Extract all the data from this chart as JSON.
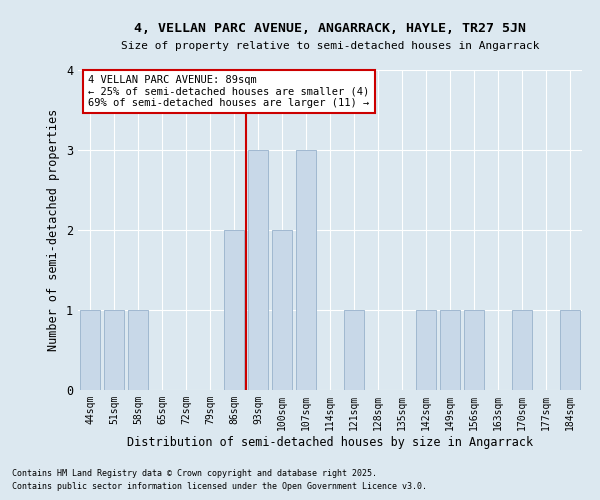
{
  "title": "4, VELLAN PARC AVENUE, ANGARRACK, HAYLE, TR27 5JN",
  "subtitle": "Size of property relative to semi-detached houses in Angarrack",
  "xlabel": "Distribution of semi-detached houses by size in Angarrack",
  "ylabel": "Number of semi-detached properties",
  "categories": [
    "44sqm",
    "51sqm",
    "58sqm",
    "65sqm",
    "72sqm",
    "79sqm",
    "86sqm",
    "93sqm",
    "100sqm",
    "107sqm",
    "114sqm",
    "121sqm",
    "128sqm",
    "135sqm",
    "142sqm",
    "149sqm",
    "156sqm",
    "163sqm",
    "170sqm",
    "177sqm",
    "184sqm"
  ],
  "values": [
    1,
    1,
    1,
    0,
    0,
    0,
    2,
    3,
    2,
    3,
    0,
    1,
    0,
    0,
    1,
    1,
    1,
    0,
    1,
    0,
    1
  ],
  "bar_color": "#c8d8e8",
  "bar_edge_color": "#a0b8d0",
  "highlight_index": 6,
  "highlight_line_color": "#cc0000",
  "annotation_title": "4 VELLAN PARC AVENUE: 89sqm",
  "annotation_line1": "← 25% of semi-detached houses are smaller (4)",
  "annotation_line2": "69% of semi-detached houses are larger (11) →",
  "annotation_box_color": "#ffffff",
  "annotation_box_edge": "#cc0000",
  "ylim": [
    0,
    4
  ],
  "yticks": [
    0,
    1,
    2,
    3,
    4
  ],
  "background_color": "#dce8f0",
  "footer1": "Contains HM Land Registry data © Crown copyright and database right 2025.",
  "footer2": "Contains public sector information licensed under the Open Government Licence v3.0."
}
